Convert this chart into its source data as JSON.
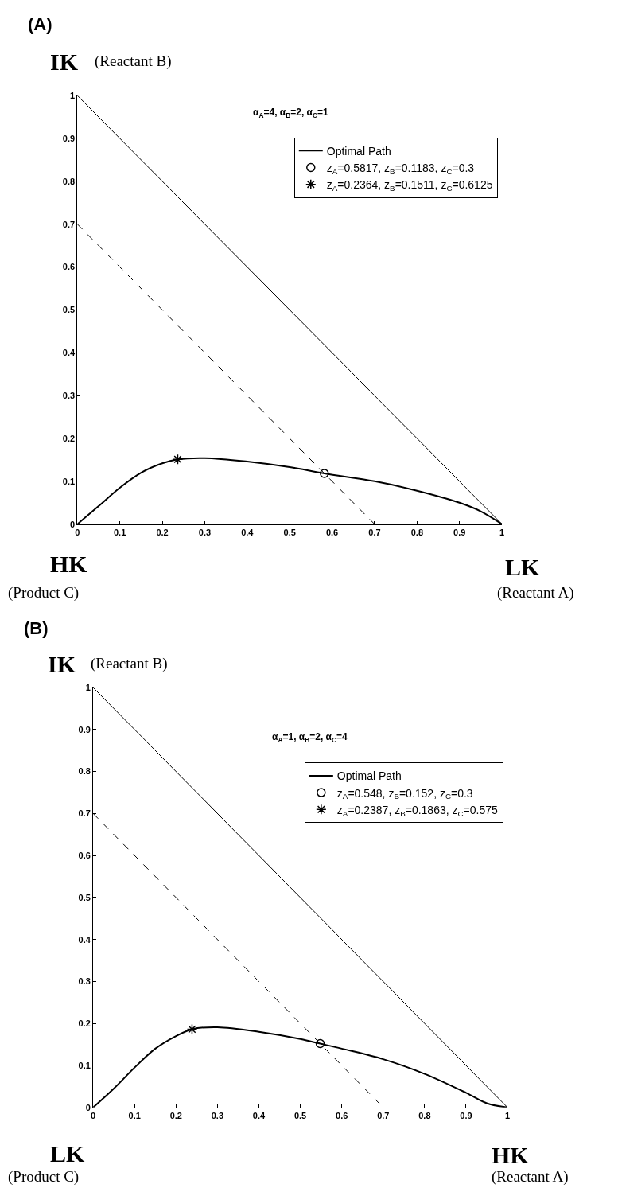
{
  "chart_data": [
    {
      "type": "line",
      "title": "(A)",
      "annotations": [
        "α$_{A}$=4, α$_{B}$=2, α$_{C}$=1",
        "IK",
        "(Reactant B)",
        "HK",
        "(Product C)",
        "LK",
        "(Reactant A)"
      ],
      "xlim": [
        0,
        1
      ],
      "ylim": [
        0,
        1
      ],
      "xticks": [
        0,
        0.1,
        0.2,
        0.3,
        0.4,
        0.5,
        0.6,
        0.7,
        0.8,
        0.9,
        1
      ],
      "yticks": [
        0,
        0.1,
        0.2,
        0.3,
        0.4,
        0.5,
        0.6,
        0.7,
        0.8,
        0.9,
        1
      ],
      "legend": "top right",
      "series": [
        {
          "name": "Optimal Path",
          "color": "#000000",
          "line_style": "solid",
          "x": [
            0,
            0.05,
            0.1,
            0.15,
            0.2,
            0.2364,
            0.3,
            0.4,
            0.5,
            0.5817,
            0.7,
            0.8,
            0.9,
            0.95,
            1
          ],
          "values": [
            0,
            0.042,
            0.085,
            0.12,
            0.142,
            0.1511,
            0.154,
            0.146,
            0.133,
            0.1183,
            0.1,
            0.078,
            0.05,
            0.03,
            0
          ]
        },
        {
          "name": "z$_{A}$=0.5817, z$_{B}$=0.1183, z$_{C}$=0.3",
          "type": "scatter",
          "marker": "circle",
          "color": "#000000",
          "x": [
            0.5817
          ],
          "values": [
            0.1183
          ]
        },
        {
          "name": "z$_{A}$=0.2364, z$_{B}$=0.1511, z$_{C}$=0.6125",
          "type": "scatter",
          "marker": "cross",
          "color": "#000000",
          "x": [
            0.2364
          ],
          "values": [
            0.1511
          ]
        },
        {
          "type": "line",
          "color": "#000000",
          "line_style": "solid",
          "x": [
            0,
            1
          ],
          "values": [
            1,
            0
          ]
        },
        {
          "type": "line",
          "color": "#000000",
          "line_style": "dashed",
          "x": [
            0,
            0.7
          ],
          "values": [
            0.7,
            0
          ]
        }
      ]
    },
    {
      "type": "line",
      "title": "(B)",
      "annotations": [
        "α$_{A}$=1, α$_{B}$=2, α$_{C}$=4",
        "IK",
        "(Reactant B)",
        "LK",
        "(Product C)",
        "HK",
        "(Reactant A)"
      ],
      "xlim": [
        0,
        1
      ],
      "ylim": [
        0,
        1
      ],
      "xticks": [
        0,
        0.1,
        0.2,
        0.3,
        0.4,
        0.5,
        0.6,
        0.7,
        0.8,
        0.9,
        1
      ],
      "yticks": [
        0,
        0.1,
        0.2,
        0.3,
        0.4,
        0.5,
        0.6,
        0.7,
        0.8,
        0.9,
        1
      ],
      "legend": "top right",
      "series": [
        {
          "name": "Optimal Path",
          "color": "#000000",
          "line_style": "solid",
          "x": [
            0,
            0.05,
            0.1,
            0.15,
            0.2,
            0.2387,
            0.3,
            0.4,
            0.5,
            0.548,
            0.6,
            0.7,
            0.8,
            0.9,
            0.95,
            1
          ],
          "values": [
            0,
            0.045,
            0.095,
            0.14,
            0.17,
            0.1863,
            0.191,
            0.18,
            0.163,
            0.152,
            0.14,
            0.115,
            0.08,
            0.035,
            0.01,
            0
          ]
        },
        {
          "name": "z$_{A}$=0.548, z$_{B}$=0.152, z$_{C}$=0.3",
          "type": "scatter",
          "marker": "circle",
          "color": "#000000",
          "x": [
            0.548
          ],
          "values": [
            0.152
          ]
        },
        {
          "name": "z$_{A}$=0.2387, z$_{B}$=0.1863, z$_{C}$=0.575",
          "type": "scatter",
          "marker": "cross",
          "color": "#000000",
          "x": [
            0.2387
          ],
          "values": [
            0.1863
          ]
        },
        {
          "type": "line",
          "color": "#000000",
          "line_style": "solid",
          "x": [
            0,
            1
          ],
          "values": [
            1,
            0
          ]
        },
        {
          "type": "line",
          "color": "#000000",
          "line_style": "dashed",
          "x": [
            0,
            0.7
          ],
          "values": [
            0.7,
            0
          ]
        }
      ]
    }
  ]
}
